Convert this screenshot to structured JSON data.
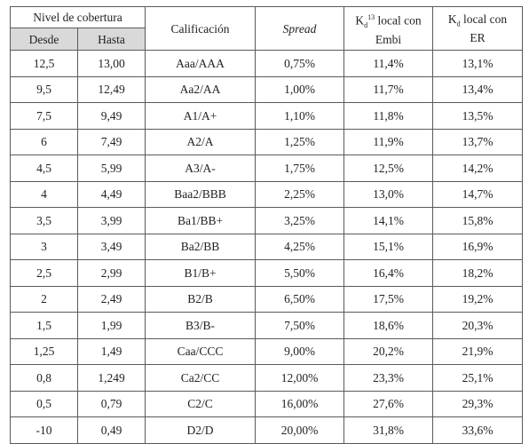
{
  "headers": {
    "coverage_group": "Nivel de cobertura",
    "from": "Desde",
    "to": "Hasta",
    "rating": "Calificación",
    "spread": "Spread",
    "kd_embi": {
      "k": "K",
      "sub": "d",
      "sup": "13",
      "line1_rest": " local con",
      "line2": "Embi"
    },
    "kd_er": {
      "k": "K",
      "sub": "d",
      "line1_rest": " local con",
      "line2": "ER"
    }
  },
  "rows": [
    {
      "from": "12,5",
      "to": "13,00",
      "rating": "Aaa/AAA",
      "spread": "0,75%",
      "kd_embi": "11,4%",
      "kd_er": "13,1%"
    },
    {
      "from": "9,5",
      "to": "12,49",
      "rating": "Aa2/AA",
      "spread": "1,00%",
      "kd_embi": "11,7%",
      "kd_er": "13,4%"
    },
    {
      "from": "7,5",
      "to": "9,49",
      "rating": "A1/A+",
      "spread": "1,10%",
      "kd_embi": "11,8%",
      "kd_er": "13,5%"
    },
    {
      "from": "6",
      "to": "7,49",
      "rating": "A2/A",
      "spread": "1,25%",
      "kd_embi": "11,9%",
      "kd_er": "13,7%"
    },
    {
      "from": "4,5",
      "to": "5,99",
      "rating": "A3/A-",
      "spread": "1,75%",
      "kd_embi": "12,5%",
      "kd_er": "14,2%"
    },
    {
      "from": "4",
      "to": "4,49",
      "rating": "Baa2/BBB",
      "spread": "2,25%",
      "kd_embi": "13,0%",
      "kd_er": "14,7%"
    },
    {
      "from": "3,5",
      "to": "3,99",
      "rating": "Ba1/BB+",
      "spread": "3,25%",
      "kd_embi": "14,1%",
      "kd_er": "15,8%"
    },
    {
      "from": "3",
      "to": "3,49",
      "rating": "Ba2/BB",
      "spread": "4,25%",
      "kd_embi": "15,1%",
      "kd_er": "16,9%"
    },
    {
      "from": "2,5",
      "to": "2,99",
      "rating": "B1/B+",
      "spread": "5,50%",
      "kd_embi": "16,4%",
      "kd_er": "18,2%"
    },
    {
      "from": "2",
      "to": "2,49",
      "rating": "B2/B",
      "spread": "6,50%",
      "kd_embi": "17,5%",
      "kd_er": "19,2%"
    },
    {
      "from": "1,5",
      "to": "1,99",
      "rating": "B3/B-",
      "spread": "7,50%",
      "kd_embi": "18,6%",
      "kd_er": "20,3%"
    },
    {
      "from": "1,25",
      "to": "1,49",
      "rating": "Caa/CCC",
      "spread": "9,00%",
      "kd_embi": "20,2%",
      "kd_er": "21,9%"
    },
    {
      "from": "0,8",
      "to": "1,249",
      "rating": "Ca2/CC",
      "spread": "12,00%",
      "kd_embi": "23,3%",
      "kd_er": "25,1%"
    },
    {
      "from": "0,5",
      "to": "0,79",
      "rating": "C2/C",
      "spread": "16,00%",
      "kd_embi": "27,6%",
      "kd_er": "29,3%"
    },
    {
      "from": "-10",
      "to": "0,49",
      "rating": "D2/D",
      "spread": "20,00%",
      "kd_embi": "31,8%",
      "kd_er": "33,6%"
    }
  ]
}
